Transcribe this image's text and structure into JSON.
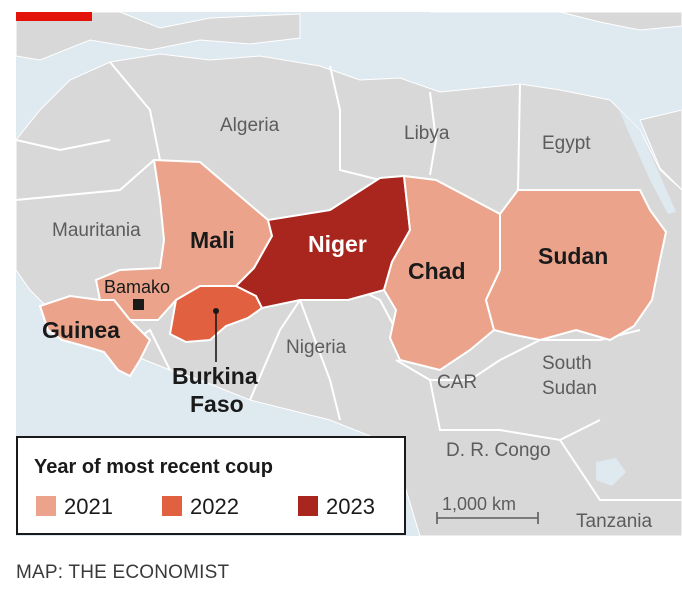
{
  "colors": {
    "sea": "#dfe9f0",
    "land": "#d8d8d8",
    "border": "#ffffff",
    "coup_2021": "#eba48b",
    "coup_2022": "#e0603f",
    "coup_2023": "#a8261e",
    "accent": "#e3120b"
  },
  "countries": {
    "algeria": "Algeria",
    "libya": "Libya",
    "egypt": "Egypt",
    "mauritania": "Mauritania",
    "mali": "Mali",
    "niger": "Niger",
    "chad": "Chad",
    "sudan": "Sudan",
    "guinea": "Guinea",
    "burkina_line1": "Burkina",
    "burkina_line2": "Faso",
    "nigeria": "Nigeria",
    "car": "CAR",
    "south_sudan_line1": "South",
    "south_sudan_line2": "Sudan",
    "dr_congo": "D. R. Congo",
    "tanzania": "Tanzania"
  },
  "city": {
    "name": "Bamako"
  },
  "legend": {
    "title": "Year of most recent coup",
    "items": [
      {
        "label": "2021",
        "color": "#eba48b"
      },
      {
        "label": "2022",
        "color": "#e0603f"
      },
      {
        "label": "2023",
        "color": "#a8261e"
      }
    ]
  },
  "scale": {
    "label": "1,000 km"
  },
  "source": "MAP: THE ECONOMIST"
}
